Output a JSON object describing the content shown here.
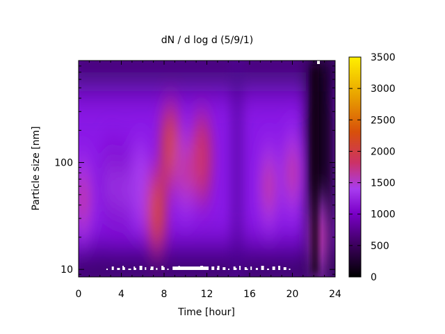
{
  "chart_data": {
    "type": "heatmap",
    "title": "dN / d log d (5/9/1)",
    "xlabel": "Time [hour]",
    "ylabel": "Particle size [nm]",
    "xlim": [
      0,
      24
    ],
    "ylim": [
      8.5,
      900
    ],
    "y_scale": "log",
    "x_ticks": [
      0,
      4,
      8,
      12,
      16,
      20,
      24
    ],
    "y_ticks": [
      10,
      100
    ],
    "colorbar": {
      "range": [
        0,
        3500
      ],
      "ticks": [
        0,
        500,
        1000,
        1500,
        2000,
        2500,
        3000,
        3500
      ],
      "colormap": [
        "#000000",
        "#3a005a",
        "#7a00c8",
        "#a83cf0",
        "#cc3266",
        "#d8500a",
        "#e8a000",
        "#fff000"
      ]
    },
    "grid": false,
    "hotspots": [
      {
        "t": 0.4,
        "d": 45,
        "value": 1900
      },
      {
        "t": 3.0,
        "d": 60,
        "value": 1500
      },
      {
        "t": 4.2,
        "d": 55,
        "value": 1400
      },
      {
        "t": 5.8,
        "d": 60,
        "value": 1600
      },
      {
        "t": 7.3,
        "d": 35,
        "value": 2600
      },
      {
        "t": 8.6,
        "d": 140,
        "value": 2400
      },
      {
        "t": 10.0,
        "d": 80,
        "value": 2100
      },
      {
        "t": 11.5,
        "d": 110,
        "value": 2200
      },
      {
        "t": 17.8,
        "d": 60,
        "value": 2100
      },
      {
        "t": 20.0,
        "d": 80,
        "value": 1900
      },
      {
        "t": 22.5,
        "d": 20,
        "value": 2000
      }
    ]
  }
}
